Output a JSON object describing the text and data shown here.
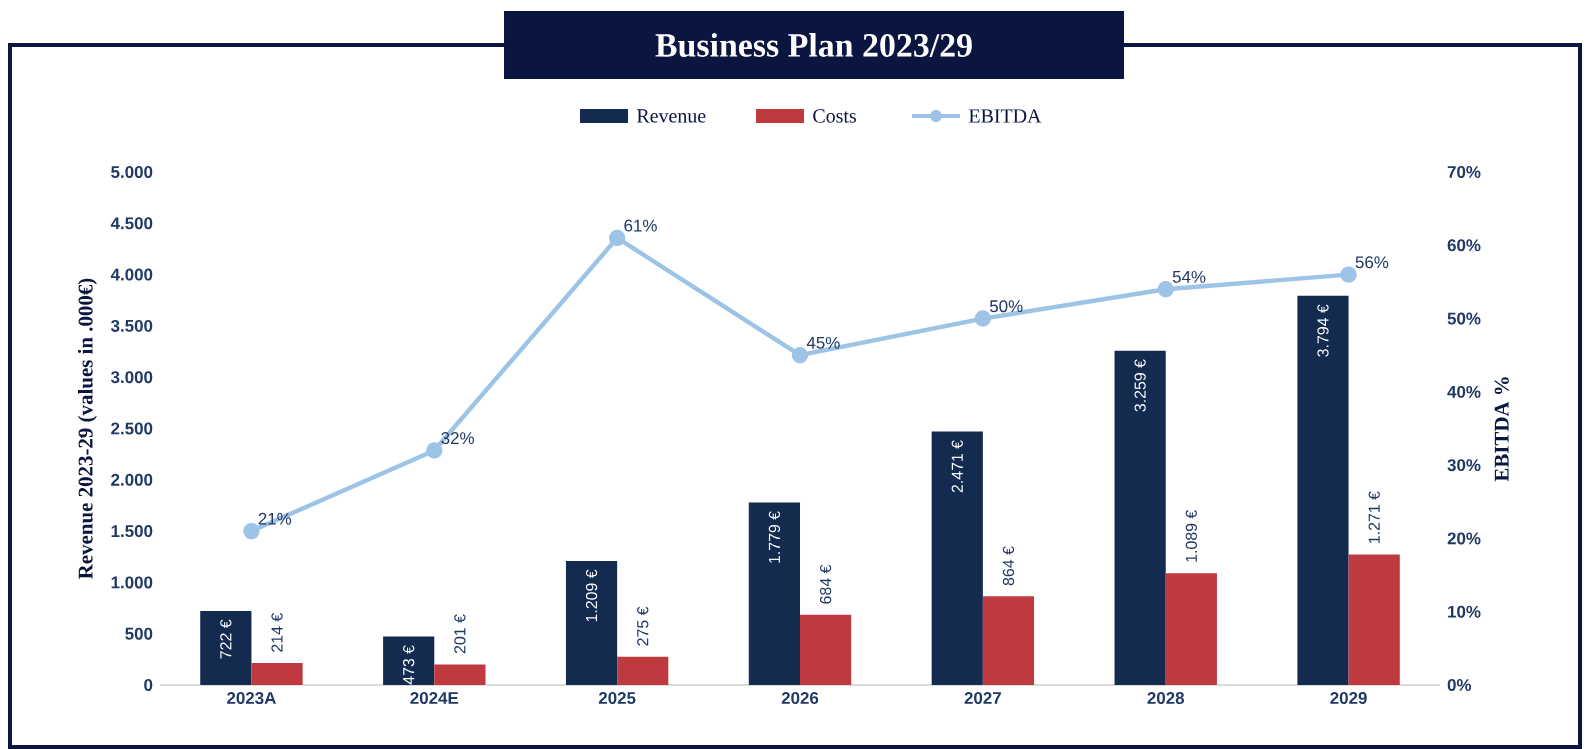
{
  "chart_data": {
    "type": "bar",
    "title": "Business Plan 2023/29",
    "ylabel": "Revenue 2023-29 (values in .000€)",
    "y2label": "EBITDA %",
    "categories": [
      "2023A",
      "2024E",
      "2025",
      "2026",
      "2027",
      "2028",
      "2029"
    ],
    "series": [
      {
        "name": "Revenue",
        "color": "#132b4f",
        "values": [
          722,
          473,
          1209,
          1779,
          2471,
          3259,
          3794
        ],
        "value_labels": [
          "722 €",
          "473 €",
          "1.209 €",
          "1.779 €",
          "2.471 €",
          "3.259 €",
          "3.794 €"
        ]
      },
      {
        "name": "Costs",
        "color": "#be3a3e",
        "values": [
          214,
          201,
          275,
          684,
          864,
          1089,
          1271
        ],
        "value_labels": [
          "214 €",
          "201 €",
          "275 €",
          "684 €",
          "864 €",
          "1.089 €",
          "1.271 €"
        ]
      },
      {
        "name": "EBITDA",
        "type": "line",
        "axis": "y2",
        "color": "#9dc3e6",
        "marker": "circle",
        "values": [
          21,
          32,
          61,
          45,
          50,
          54,
          56
        ],
        "value_labels": [
          "21%",
          "32%",
          "61%",
          "45%",
          "50%",
          "54%",
          "56%"
        ]
      }
    ],
    "ylim": [
      0,
      5000
    ],
    "yticks": [
      0,
      500,
      {
        "value": 1000,
        "label": "1.000"
      },
      {
        "value": 1500,
        "label": "1.500"
      },
      {
        "value": 2000,
        "label": "2.000"
      },
      {
        "value": 2500,
        "label": "2.500"
      },
      {
        "value": 3000,
        "label": "3.000"
      },
      {
        "value": 3500,
        "label": "3.500"
      },
      {
        "value": 4000,
        "label": "4.000"
      },
      {
        "value": 4500,
        "label": "4.500"
      },
      {
        "value": 5000,
        "label": "5.000"
      }
    ],
    "y2lim": [
      0,
      70
    ],
    "y2ticks": [
      {
        "value": 0,
        "label": "0%"
      },
      {
        "value": 10,
        "label": "10%"
      },
      {
        "value": 20,
        "label": "20%"
      },
      {
        "value": 30,
        "label": "30%"
      },
      {
        "value": 40,
        "label": "40%"
      },
      {
        "value": 50,
        "label": "50%"
      },
      {
        "value": 60,
        "label": "60%"
      },
      {
        "value": 70,
        "label": "70%"
      }
    ],
    "legend": "top"
  }
}
